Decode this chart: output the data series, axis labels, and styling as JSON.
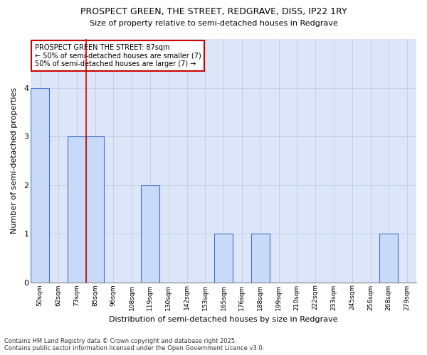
{
  "title_line1": "PROSPECT GREEN, THE STREET, REDGRAVE, DISS, IP22 1RY",
  "title_line2": "Size of property relative to semi-detached houses in Redgrave",
  "xlabel": "Distribution of semi-detached houses by size in Redgrave",
  "ylabel": "Number of semi-detached properties",
  "footnote": "Contains HM Land Registry data © Crown copyright and database right 2025.\nContains public sector information licensed under the Open Government Licence v3.0.",
  "bin_labels": [
    "50sqm",
    "62sqm",
    "73sqm",
    "85sqm",
    "96sqm",
    "108sqm",
    "119sqm",
    "130sqm",
    "142sqm",
    "153sqm",
    "165sqm",
    "176sqm",
    "188sqm",
    "199sqm",
    "210sqm",
    "222sqm",
    "233sqm",
    "245sqm",
    "256sqm",
    "268sqm",
    "279sqm"
  ],
  "counts": [
    4,
    0,
    3,
    3,
    0,
    0,
    2,
    0,
    0,
    0,
    1,
    0,
    1,
    0,
    0,
    0,
    0,
    0,
    0,
    1,
    0
  ],
  "bar_color": "#c9daf8",
  "bar_edge_color": "#4472c4",
  "red_line_x": 3.5,
  "annotation_text": "PROSPECT GREEN THE STREET: 87sqm\n← 50% of semi-detached houses are smaller (7)\n50% of semi-detached houses are larger (7) →",
  "annotation_box_edge": "#cc0000",
  "ylim": [
    0,
    5
  ],
  "yticks": [
    0,
    1,
    2,
    3,
    4,
    5
  ],
  "axes_bg_color": "#dce6f8",
  "figure_bg_color": "#ffffff",
  "grid_color": "#b8c8e0"
}
